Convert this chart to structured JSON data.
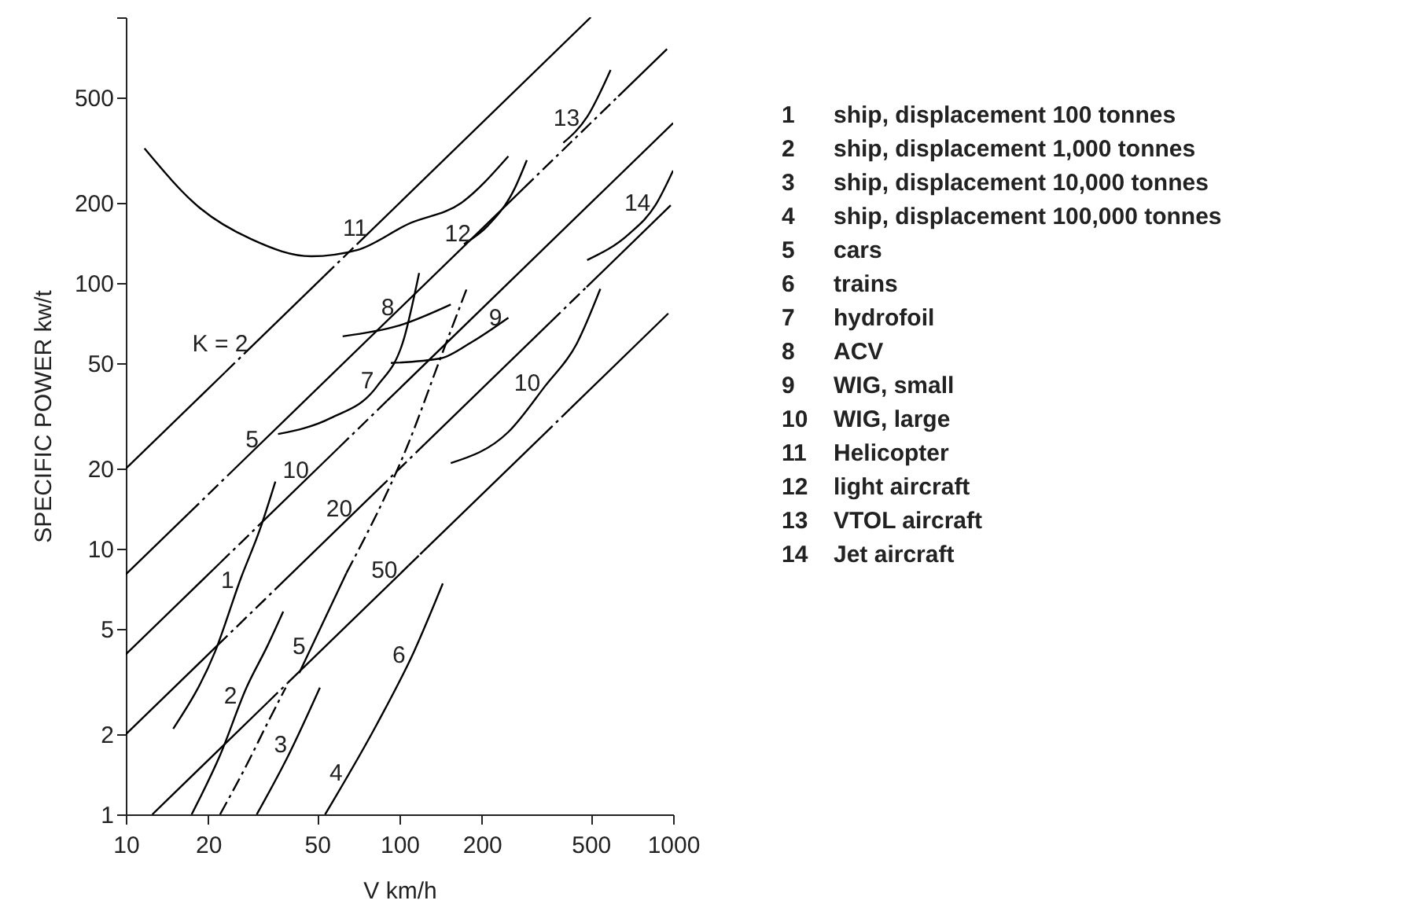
{
  "chart_data": {
    "type": "line",
    "xlabel": "V km/h",
    "ylabel": "SPECIFIC POWER kw/t",
    "log": "xy",
    "xlim": [
      10,
      1000
    ],
    "ylim": [
      1,
      1000
    ],
    "xticks": [
      10,
      20,
      50,
      100,
      200,
      500,
      1000
    ],
    "yticks": [
      1,
      2,
      5,
      10,
      20,
      50,
      100,
      200,
      500,
      {
        "value": 1000,
        "label": null
      }
    ],
    "series": [
      {
        "color": "#000000",
        "line_style": "solid",
        "x": [
          14.9,
          21.2,
          26.4,
          30.8,
          35.2
        ],
        "values": [
          2.1,
          4.1,
          7.8,
          11.7,
          17.9
        ]
      },
      {
        "color": "#000000",
        "line_style": "solid",
        "x": [
          17.4,
          22.1,
          27.6,
          32.9,
          37.6
        ],
        "values": [
          1,
          1.67,
          3.0,
          4.3,
          5.8
        ]
      },
      {
        "color": "#000000",
        "line_style": "dashed",
        "x": [
          22.1,
          27.6,
          32.9,
          38.4
        ],
        "values": [
          1,
          1.53,
          2.2,
          3.0
        ]
      },
      {
        "color": "#000000",
        "line_style": "solid",
        "x": [
          30.1,
          39.3,
          51.2
        ],
        "values": [
          1,
          1.67,
          3.0
        ]
      },
      {
        "color": "#000000",
        "line_style": "solid",
        "x": [
          43,
          64
        ],
        "values": [
          3.4,
          8.1
        ]
      },
      {
        "color": "#000000",
        "line_style": "dashed",
        "x": [
          64,
          108,
          141,
          176
        ],
        "values": [
          8.1,
          25,
          52,
          95
        ]
      },
      {
        "color": "#000000",
        "line_style": "solid",
        "x": [
          53.5,
          83,
          113,
          144
        ],
        "values": [
          1,
          2.2,
          4.1,
          7.4
        ]
      },
      {
        "color": "#000000",
        "line_style": "solid",
        "x": [
          36,
          56,
          83,
          104,
          118
        ],
        "values": [
          27,
          31,
          41,
          62,
          109
        ]
      },
      {
        "color": "#000000",
        "line_style": "solid",
        "x": [
          62,
          99,
          154
        ],
        "values": [
          63,
          69,
          83
        ]
      },
      {
        "color": "#000000",
        "line_style": "solid",
        "x": [
          93,
          141,
          184,
          250
        ],
        "values": [
          50,
          52,
          60,
          74
        ]
      },
      {
        "color": "#000000",
        "line_style": "solid",
        "x": [
          154,
          250,
          341,
          444,
          542
        ],
        "values": [
          21,
          27.5,
          41,
          59,
          95
        ]
      },
      {
        "color": "#000000",
        "line_style": "solid",
        "x": [
          11.7,
          18.6,
          28.8,
          47.6,
          70,
          108,
          168,
          250
        ],
        "values": [
          321,
          192,
          146,
          126,
          133,
          167,
          200,
          300
        ]
      },
      {
        "color": "#000000",
        "line_style": "solid",
        "x": [
          172,
          210,
          262,
          292
        ],
        "values": [
          140,
          164,
          224,
          290
        ]
      },
      {
        "color": "#000000",
        "line_style": "solid",
        "x": [
          397,
          485,
          591
        ],
        "values": [
          337,
          422,
          634
        ]
      },
      {
        "color": "#000000",
        "line_style": "solid",
        "x": [
          485,
          690,
          861,
          1000
        ],
        "values": [
          122,
          153,
          196,
          265
        ]
      },
      {
        "color": "#000000",
        "line_style": "solid",
        "x": [
          10,
          23
        ],
        "values": [
          20,
          46
        ]
      },
      {
        "color": "#000000",
        "line_style": "dashed",
        "x": [
          23,
          27
        ],
        "values": [
          46,
          54
        ]
      },
      {
        "color": "#000000",
        "line_style": "solid",
        "x": [
          27,
          53
        ],
        "values": [
          54,
          106
        ]
      },
      {
        "color": "#000000",
        "line_style": "dashed",
        "x": [
          53,
          70
        ],
        "values": [
          106,
          140
        ]
      },
      {
        "color": "#000000",
        "line_style": "solid",
        "x": [
          70,
          500
        ],
        "values": [
          140,
          1000
        ]
      },
      {
        "color": "#000000",
        "line_style": "solid",
        "x": [
          10,
          17
        ],
        "values": [
          8,
          13.6
        ]
      },
      {
        "color": "#000000",
        "line_style": "dashed",
        "x": [
          17,
          25
        ],
        "values": [
          13.6,
          20
        ]
      },
      {
        "color": "#000000",
        "line_style": "solid",
        "x": [
          25,
          284
        ],
        "values": [
          20,
          227
        ]
      },
      {
        "color": "#000000",
        "line_style": "dashed",
        "x": [
          284,
          630
        ],
        "values": [
          227,
          504
        ]
      },
      {
        "color": "#000000",
        "line_style": "solid",
        "x": [
          630,
          950
        ],
        "values": [
          504,
          760
        ]
      },
      {
        "color": "#000000",
        "line_style": "solid",
        "x": [
          10,
          22
        ],
        "values": [
          4,
          8.8
        ]
      },
      {
        "color": "#000000",
        "line_style": "dashed",
        "x": [
          22,
          31
        ],
        "values": [
          8.8,
          12.4
        ]
      },
      {
        "color": "#000000",
        "line_style": "solid",
        "x": [
          31,
          60
        ],
        "values": [
          12.4,
          24
        ]
      },
      {
        "color": "#000000",
        "line_style": "dashed",
        "x": [
          60,
          90
        ],
        "values": [
          24,
          36
        ]
      },
      {
        "color": "#000000",
        "line_style": "solid",
        "x": [
          90,
          1000
        ],
        "values": [
          36,
          400
        ]
      },
      {
        "color": "#000000",
        "line_style": "solid",
        "x": [
          10,
          21.6
        ],
        "values": [
          2,
          4.32
        ]
      },
      {
        "color": "#000000",
        "line_style": "dashed",
        "x": [
          21.6,
          35
        ],
        "values": [
          4.32,
          7
        ]
      },
      {
        "color": "#000000",
        "line_style": "solid",
        "x": [
          35,
          83
        ],
        "values": [
          7,
          16.6
        ]
      },
      {
        "color": "#000000",
        "line_style": "dashed",
        "x": [
          83,
          124
        ],
        "values": [
          16.6,
          24.8
        ]
      },
      {
        "color": "#000000",
        "line_style": "solid",
        "x": [
          124,
          356
        ],
        "values": [
          24.8,
          71.2
        ]
      },
      {
        "color": "#000000",
        "line_style": "dashed",
        "x": [
          356,
          483
        ],
        "values": [
          71.2,
          96.6
        ]
      },
      {
        "color": "#000000",
        "line_style": "solid",
        "x": [
          483,
          980
        ],
        "values": [
          96.6,
          196
        ]
      },
      {
        "color": "#000000",
        "line_style": "solid",
        "x": [
          12.5,
          33
        ],
        "values": [
          1,
          2.64
        ]
      },
      {
        "color": "#000000",
        "line_style": "dashed",
        "x": [
          33,
          39
        ],
        "values": [
          2.64,
          3.12
        ]
      },
      {
        "color": "#000000",
        "line_style": "solid",
        "x": [
          39,
          108
        ],
        "values": [
          3.12,
          8.64
        ]
      },
      {
        "color": "#000000",
        "line_style": "dashed",
        "x": [
          108,
          119
        ],
        "values": [
          8.64,
          9.52
        ]
      },
      {
        "color": "#000000",
        "line_style": "solid",
        "x": [
          119,
          333
        ],
        "values": [
          9.52,
          26.6
        ]
      },
      {
        "color": "#000000",
        "line_style": "dashed",
        "x": [
          333,
          420
        ],
        "values": [
          26.6,
          33.6
        ]
      },
      {
        "color": "#000000",
        "line_style": "solid",
        "x": [
          420,
          960
        ],
        "values": [
          33.6,
          76.8
        ]
      }
    ],
    "annotations": [
      {
        "text": "1",
        "x": 26.2,
        "y": 7.6
      },
      {
        "text": "2",
        "x": 26.9,
        "y": 2.8
      },
      {
        "text": "3",
        "x": 41,
        "y": 1.83
      },
      {
        "text": "4",
        "x": 65.3,
        "y": 1.43
      },
      {
        "text": "5",
        "x": 47.9,
        "y": 4.3
      },
      {
        "text": "6",
        "x": 111,
        "y": 4
      },
      {
        "text": "7",
        "x": 85,
        "y": 43
      },
      {
        "text": "8",
        "x": 101,
        "y": 81
      },
      {
        "text": "9",
        "x": 250,
        "y": 74
      },
      {
        "text": "10",
        "x": 345,
        "y": 42
      },
      {
        "text": "11",
        "x": 80.5,
        "y": 161
      },
      {
        "text": "12",
        "x": 192.5,
        "y": 154
      },
      {
        "text": "13",
        "x": 480,
        "y": 417
      },
      {
        "text": "14",
        "x": 872,
        "y": 201
      },
      {
        "text": "K = 2",
        "x": 29.5,
        "y": 59
      },
      {
        "text": "5",
        "x": 32.25,
        "y": 25.8
      },
      {
        "text": "10",
        "x": 49.25,
        "y": 19.7
      },
      {
        "text": "20",
        "x": 71,
        "y": 14.2
      },
      {
        "text": "50",
        "x": 103.75,
        "y": 8.3
      },
      "1 ship, displacement 100 tonnes",
      "2 ship, displacement 1,000 tonnes",
      "3 ship, displacement 10,000 tonnes",
      "4 ship, displacement 100,000 tonnes",
      "5 cars",
      "6 trains",
      "7 hydrofoil",
      "8 ACV",
      "9 WIG, small",
      "10 WIG, large",
      "11 Helicopter",
      "12 light aircraft",
      "13 VTOL aircraft",
      "14 Jet aircraft"
    ]
  }
}
